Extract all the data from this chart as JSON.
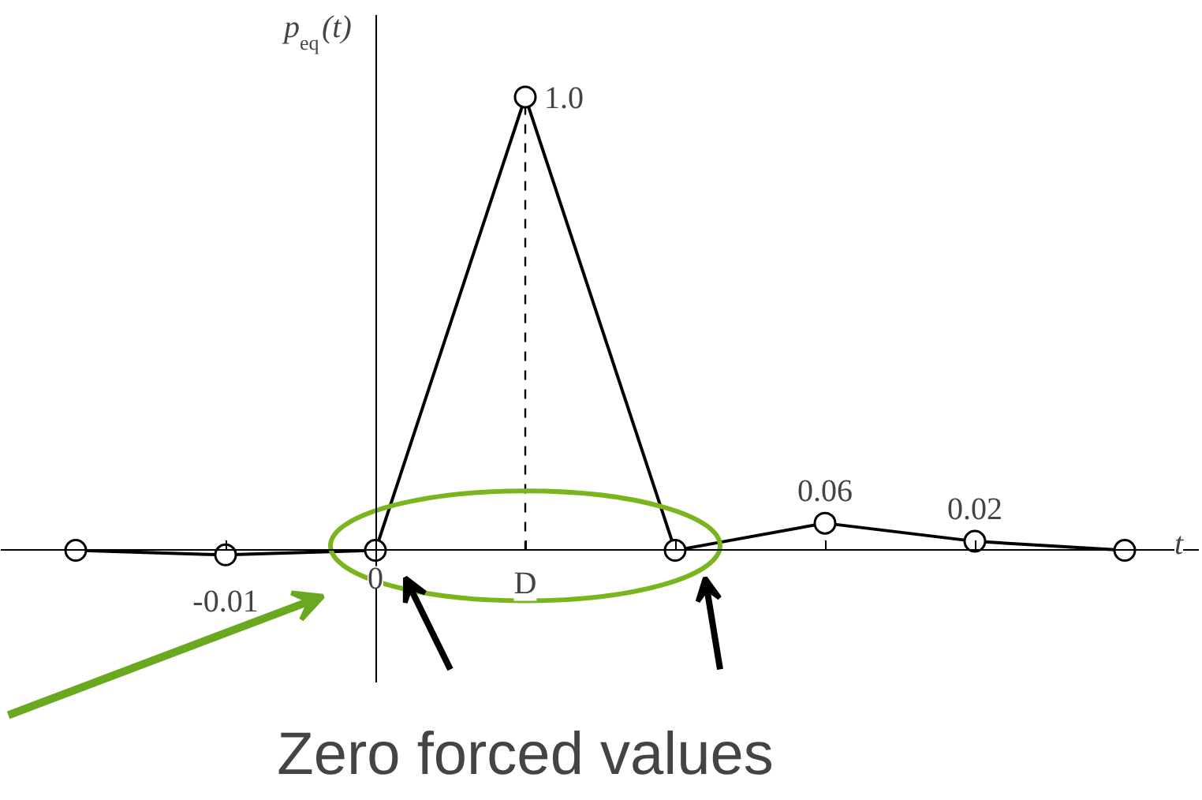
{
  "chart_data": {
    "type": "line",
    "ylabel": "p$_{eq}$(t)",
    "xlabel": "t",
    "categories": [
      null,
      null,
      "0",
      "D",
      null,
      null,
      null,
      null
    ],
    "series": [
      {
        "color": "#000000",
        "values": [
          0,
          -0.01,
          0,
          1.0,
          0,
          0.06,
          0.02,
          0
        ],
        "value_labels": [
          null,
          "-0.01",
          null,
          "1.0",
          null,
          "0.06",
          "0.02",
          null
        ]
      }
    ],
    "ref_lines": [
      {
        "axis": "x",
        "value": "D",
        "label": null,
        "line_style": "dashed",
        "color": "#000000"
      }
    ],
    "marker": "circle",
    "grid": false,
    "annotations": [
      "Zero forced values"
    ]
  }
}
